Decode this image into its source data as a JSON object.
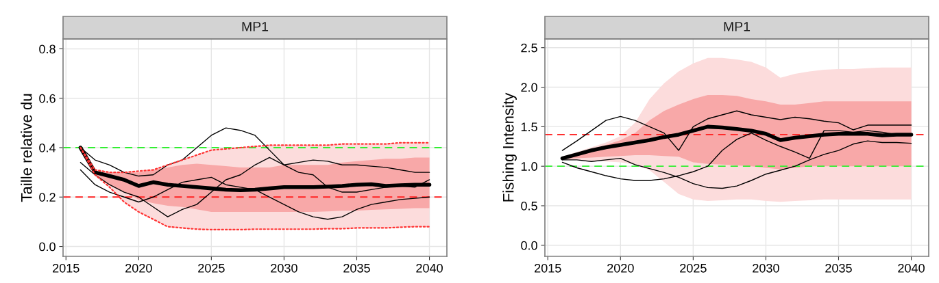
{
  "chart_data": [
    {
      "type": "line",
      "title": "MP1",
      "ylabel": "Taille relative du",
      "x": [
        2016,
        2017,
        2018,
        2019,
        2020,
        2021,
        2022,
        2023,
        2024,
        2025,
        2026,
        2027,
        2028,
        2029,
        2030,
        2031,
        2032,
        2033,
        2034,
        2035,
        2036,
        2037,
        2038,
        2039,
        2040
      ],
      "xlim": [
        2014.8,
        2041.2
      ],
      "xticks": [
        2015,
        2020,
        2025,
        2030,
        2035,
        2040
      ],
      "ylim": [
        -0.04,
        0.84
      ],
      "yticks": [
        {
          "value": 0,
          "label": "0.0"
        },
        0.2,
        0.4,
        0.6,
        0.8
      ],
      "grid": true,
      "series": [
        {
          "color": "#fcdcdc",
          "values": [
            null,
            null,
            null,
            null,
            null,
            null,
            null,
            null,
            null,
            null,
            null,
            null,
            null,
            null,
            null,
            null,
            null,
            null,
            null,
            null,
            null,
            null,
            null,
            null,
            null
          ],
          "lower": [
            0.4,
            0.29,
            0.24,
            0.18,
            0.14,
            0.11,
            0.08,
            0.075,
            0.07,
            0.068,
            0.068,
            0.068,
            0.07,
            0.07,
            0.07,
            0.07,
            0.07,
            0.072,
            0.072,
            0.075,
            0.075,
            0.075,
            0.078,
            0.08,
            0.08
          ],
          "upper": [
            0.4,
            0.31,
            0.3,
            0.3,
            0.305,
            0.31,
            0.33,
            0.35,
            0.37,
            0.39,
            0.395,
            0.4,
            0.405,
            0.41,
            0.41,
            0.41,
            0.41,
            0.41,
            0.415,
            0.415,
            0.415,
            0.415,
            0.42,
            0.42,
            0.42
          ]
        },
        {
          "color": "#000000",
          "values": [
            0.4,
            0.3,
            0.285,
            0.27,
            0.245,
            0.26,
            0.25,
            0.245,
            0.24,
            0.235,
            0.23,
            0.228,
            0.23,
            0.235,
            0.24,
            0.24,
            0.24,
            0.242,
            0.245,
            0.25,
            0.252,
            0.245,
            0.248,
            0.25,
            0.25
          ],
          "lower": [
            0.4,
            0.29,
            0.25,
            0.22,
            0.19,
            0.175,
            0.165,
            0.16,
            0.15,
            0.14,
            0.14,
            0.14,
            0.14,
            0.14,
            0.14,
            0.14,
            0.14,
            0.142,
            0.145,
            0.145,
            0.148,
            0.15,
            0.152,
            0.155,
            0.155
          ],
          "upper": [
            0.4,
            0.3,
            0.3,
            0.3,
            0.3,
            0.31,
            0.32,
            0.33,
            0.335,
            0.33,
            0.325,
            0.32,
            0.32,
            0.32,
            0.33,
            0.33,
            0.33,
            0.33,
            0.34,
            0.345,
            0.35,
            0.355,
            0.355,
            0.36,
            0.36
          ]
        },
        {
          "color": "#000000",
          "values": [
            0.4,
            0.35,
            0.33,
            0.3,
            0.285,
            0.29,
            0.33,
            0.35,
            0.4,
            0.45,
            0.48,
            0.47,
            0.45,
            0.39,
            0.33,
            0.34,
            0.35,
            0.345,
            0.33,
            0.33,
            0.325,
            0.32,
            0.31,
            0.3,
            0.3
          ]
        },
        {
          "color": "#000000",
          "values": [
            0.34,
            0.29,
            0.25,
            0.22,
            0.2,
            0.16,
            0.12,
            0.15,
            0.17,
            0.22,
            0.27,
            0.29,
            0.33,
            0.36,
            0.33,
            0.3,
            0.29,
            0.24,
            0.22,
            0.22,
            0.23,
            0.24,
            0.245,
            0.24,
            0.27
          ]
        },
        {
          "color": "#000000",
          "values": [
            0.31,
            0.25,
            0.22,
            0.2,
            0.18,
            0.2,
            0.23,
            0.26,
            0.27,
            0.28,
            0.25,
            0.24,
            0.23,
            0.2,
            0.17,
            0.14,
            0.12,
            0.11,
            0.12,
            0.15,
            0.17,
            0.18,
            0.19,
            0.195,
            0.2
          ]
        },
        {
          "color": "#ff3333",
          "line_style": "dotted",
          "values": [
            0.4,
            0.29,
            0.24,
            0.18,
            0.14,
            0.11,
            0.08,
            0.075,
            0.07,
            0.068,
            0.068,
            0.068,
            0.07,
            0.07,
            0.07,
            0.07,
            0.07,
            0.072,
            0.072,
            0.075,
            0.075,
            0.075,
            0.078,
            0.08,
            0.08
          ]
        },
        {
          "color": "#ff3333",
          "line_style": "dotted",
          "values": [
            0.4,
            0.31,
            0.3,
            0.3,
            0.305,
            0.31,
            0.33,
            0.35,
            0.37,
            0.39,
            0.395,
            0.4,
            0.405,
            0.41,
            0.41,
            0.41,
            0.41,
            0.41,
            0.415,
            0.415,
            0.415,
            0.415,
            0.42,
            0.42,
            0.42
          ]
        }
      ],
      "ref_lines": [
        {
          "axis": "y",
          "value": 0.2,
          "color": "#ff2222",
          "line_style": "dashed"
        },
        {
          "axis": "y",
          "value": 0.4,
          "color": "#33ee33",
          "line_style": "dashed"
        }
      ]
    },
    {
      "type": "line",
      "title": "MP1",
      "ylabel": "Fishing Intensity",
      "x": [
        2016,
        2017,
        2018,
        2019,
        2020,
        2021,
        2022,
        2023,
        2024,
        2025,
        2026,
        2027,
        2028,
        2029,
        2030,
        2031,
        2032,
        2033,
        2034,
        2035,
        2036,
        2037,
        2038,
        2039,
        2040
      ],
      "xlim": [
        2014.8,
        2041.2
      ],
      "xticks": [
        2015,
        2020,
        2025,
        2030,
        2035,
        2040
      ],
      "ylim": [
        -0.14,
        2.61
      ],
      "yticks": [
        {
          "value": 0,
          "label": "0.0"
        },
        0.5,
        {
          "value": 1,
          "label": "1.0"
        },
        1.5,
        {
          "value": 2,
          "label": "2.0"
        },
        2.5
      ],
      "grid": true,
      "series": [
        {
          "color": "#fcdcdc",
          "values": [
            null,
            null,
            null,
            null,
            null,
            null,
            null,
            null,
            null,
            null,
            null,
            null,
            null,
            null,
            null,
            null,
            null,
            null,
            null,
            null,
            null,
            null,
            null,
            null,
            null
          ],
          "lower": [
            1.08,
            1.08,
            1.07,
            1.06,
            1.05,
            1.02,
            0.95,
            0.8,
            0.65,
            0.58,
            0.56,
            0.57,
            0.58,
            0.58,
            0.56,
            0.55,
            0.56,
            0.57,
            0.58,
            0.58,
            0.58,
            0.58,
            0.58,
            0.58,
            0.58
          ],
          "upper": [
            1.12,
            1.18,
            1.24,
            1.3,
            1.38,
            1.55,
            1.85,
            2.05,
            2.2,
            2.3,
            2.37,
            2.37,
            2.35,
            2.32,
            2.25,
            2.12,
            2.17,
            2.2,
            2.22,
            2.23,
            2.23,
            2.24,
            2.25,
            2.25,
            2.25
          ]
        },
        {
          "color": "#000000",
          "values": [
            1.1,
            1.15,
            1.2,
            1.24,
            1.27,
            1.3,
            1.33,
            1.37,
            1.4,
            1.45,
            1.5,
            1.49,
            1.47,
            1.45,
            1.41,
            1.33,
            1.36,
            1.38,
            1.4,
            1.41,
            1.41,
            1.41,
            1.39,
            1.4,
            1.4
          ],
          "lower": [
            1.09,
            1.1,
            1.11,
            1.12,
            1.13,
            1.14,
            1.14,
            1.13,
            1.12,
            1.05,
            1.03,
            1.02,
            1.01,
            1.0,
            0.98,
            0.96,
            0.98,
            1.0,
            1.0,
            1.0,
            1.0,
            1.0,
            1.0,
            1.0,
            1.0
          ],
          "upper": [
            1.11,
            1.16,
            1.22,
            1.27,
            1.33,
            1.42,
            1.58,
            1.7,
            1.78,
            1.85,
            1.9,
            1.9,
            1.89,
            1.85,
            1.82,
            1.78,
            1.78,
            1.8,
            1.82,
            1.82,
            1.82,
            1.82,
            1.82,
            1.82,
            1.82
          ]
        },
        {
          "color": "#000000",
          "values": [
            1.2,
            1.32,
            1.45,
            1.58,
            1.63,
            1.58,
            1.5,
            1.42,
            1.2,
            1.5,
            1.6,
            1.65,
            1.7,
            1.65,
            1.62,
            1.59,
            1.62,
            1.6,
            1.57,
            1.55,
            1.46,
            1.52,
            1.52,
            1.52,
            1.52
          ]
        },
        {
          "color": "#000000",
          "values": [
            1.08,
            1.08,
            1.06,
            1.08,
            1.1,
            1.02,
            0.97,
            0.92,
            0.86,
            0.78,
            0.73,
            0.72,
            0.75,
            0.82,
            0.9,
            0.95,
            1.0,
            1.08,
            1.15,
            1.2,
            1.28,
            1.32,
            1.3,
            1.3,
            1.29
          ]
        },
        {
          "color": "#000000",
          "values": [
            1.05,
            0.98,
            0.93,
            0.88,
            0.84,
            0.82,
            0.82,
            0.84,
            0.88,
            0.93,
            1.0,
            1.2,
            1.34,
            1.42,
            1.33,
            1.25,
            1.18,
            1.1,
            1.45,
            1.45,
            1.43,
            1.45,
            1.43,
            1.4,
            1.4
          ]
        }
      ],
      "ref_lines": [
        {
          "axis": "y",
          "value": 1.4,
          "color": "#ff2222",
          "line_style": "dashed"
        },
        {
          "axis": "y",
          "value": 1.0,
          "color": "#33ee33",
          "line_style": "dashed"
        }
      ]
    }
  ]
}
